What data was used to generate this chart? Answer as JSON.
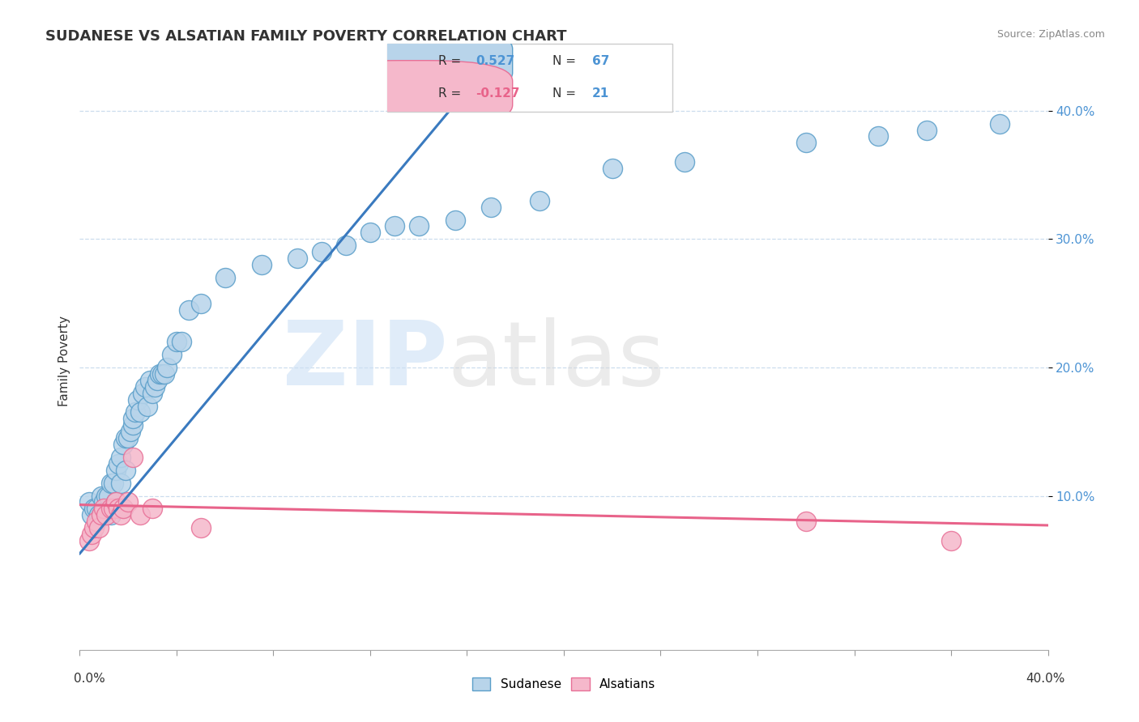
{
  "title": "SUDANESE VS ALSATIAN FAMILY POVERTY CORRELATION CHART",
  "source": "Source: ZipAtlas.com",
  "ylabel": "Family Poverty",
  "xlim": [
    0.0,
    0.4
  ],
  "ylim": [
    -0.02,
    0.43
  ],
  "yticks": [
    0.1,
    0.2,
    0.3,
    0.4
  ],
  "ytick_labels": [
    "10.0%",
    "20.0%",
    "30.0%",
    "40.0%"
  ],
  "blue_R": "0.527",
  "blue_N": "67",
  "pink_R": "-0.127",
  "pink_N": "21",
  "blue_fill": "#b8d4ea",
  "pink_fill": "#f5b8cb",
  "blue_edge": "#5a9ec9",
  "pink_edge": "#e87097",
  "blue_line": "#3a7abf",
  "pink_line": "#e8638a",
  "sudanese_x": [
    0.004,
    0.005,
    0.006,
    0.007,
    0.008,
    0.009,
    0.009,
    0.01,
    0.01,
    0.011,
    0.011,
    0.012,
    0.012,
    0.013,
    0.013,
    0.014,
    0.014,
    0.015,
    0.015,
    0.016,
    0.016,
    0.017,
    0.017,
    0.018,
    0.018,
    0.019,
    0.019,
    0.02,
    0.021,
    0.022,
    0.022,
    0.023,
    0.024,
    0.025,
    0.026,
    0.027,
    0.028,
    0.029,
    0.03,
    0.031,
    0.032,
    0.033,
    0.034,
    0.035,
    0.036,
    0.038,
    0.04,
    0.042,
    0.045,
    0.05,
    0.06,
    0.075,
    0.09,
    0.1,
    0.11,
    0.12,
    0.13,
    0.14,
    0.155,
    0.17,
    0.19,
    0.22,
    0.25,
    0.3,
    0.33,
    0.35,
    0.38
  ],
  "sudanese_y": [
    0.095,
    0.085,
    0.09,
    0.09,
    0.085,
    0.1,
    0.085,
    0.09,
    0.095,
    0.085,
    0.1,
    0.09,
    0.1,
    0.085,
    0.11,
    0.09,
    0.11,
    0.095,
    0.12,
    0.09,
    0.125,
    0.11,
    0.13,
    0.09,
    0.14,
    0.12,
    0.145,
    0.145,
    0.15,
    0.155,
    0.16,
    0.165,
    0.175,
    0.165,
    0.18,
    0.185,
    0.17,
    0.19,
    0.18,
    0.185,
    0.19,
    0.195,
    0.195,
    0.195,
    0.2,
    0.21,
    0.22,
    0.22,
    0.245,
    0.25,
    0.27,
    0.28,
    0.285,
    0.29,
    0.295,
    0.305,
    0.31,
    0.31,
    0.315,
    0.325,
    0.33,
    0.355,
    0.36,
    0.375,
    0.38,
    0.385,
    0.39
  ],
  "alsatian_x": [
    0.004,
    0.005,
    0.006,
    0.007,
    0.008,
    0.009,
    0.01,
    0.011,
    0.013,
    0.014,
    0.015,
    0.016,
    0.017,
    0.018,
    0.02,
    0.022,
    0.025,
    0.03,
    0.05,
    0.3,
    0.36
  ],
  "alsatian_y": [
    0.065,
    0.07,
    0.075,
    0.08,
    0.075,
    0.085,
    0.09,
    0.085,
    0.09,
    0.09,
    0.095,
    0.09,
    0.085,
    0.09,
    0.095,
    0.13,
    0.085,
    0.09,
    0.075,
    0.08,
    0.065
  ],
  "blue_line_x0": 0.0,
  "blue_line_y0": 0.055,
  "blue_line_x1": 0.155,
  "blue_line_y1": 0.405,
  "pink_line_x0": 0.0,
  "pink_line_y0": 0.093,
  "pink_line_x1": 0.4,
  "pink_line_y1": 0.077
}
